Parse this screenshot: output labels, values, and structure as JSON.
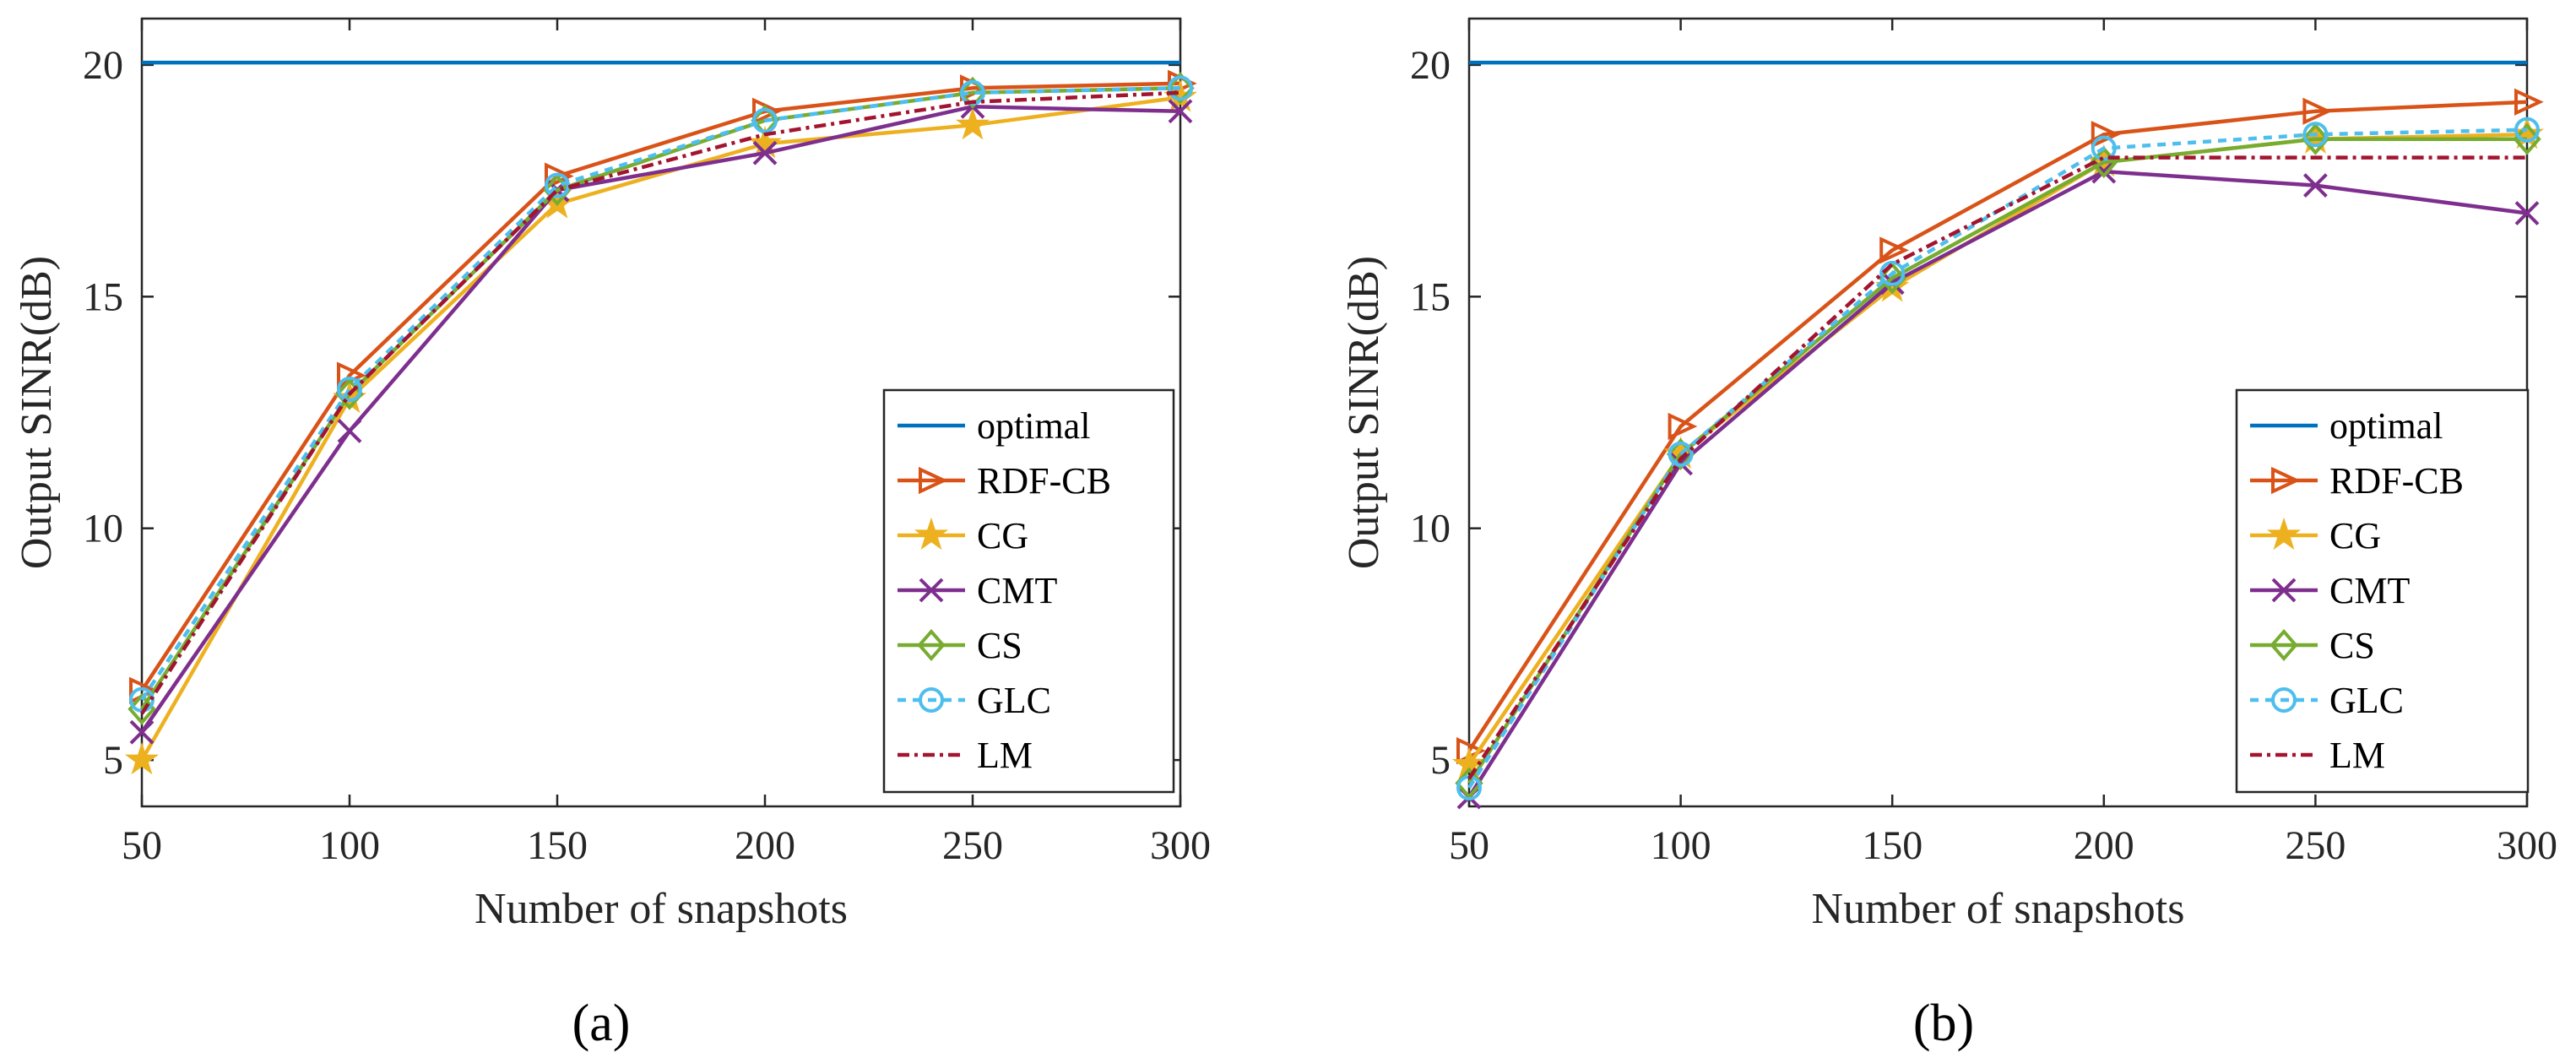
{
  "chart_data": [
    {
      "type": "line",
      "panel_label": "(a)",
      "xlabel": "Number of snapshots",
      "ylabel": "Output SINR(dB)",
      "x": [
        50,
        100,
        150,
        200,
        250,
        300
      ],
      "xticks": [
        "50",
        "100",
        "150",
        "200",
        "250",
        "300"
      ],
      "yticks": [
        "5",
        "10",
        "15",
        "20"
      ],
      "xlim": [
        50,
        300
      ],
      "ylim": [
        4,
        21
      ],
      "legend_position": "bottom-right",
      "series": [
        {
          "name": "optimal",
          "values": [
            20.05,
            20.05,
            20.05,
            20.05,
            20.05,
            20.05
          ],
          "color": "#0072BD",
          "dash": "",
          "marker": "none"
        },
        {
          "name": "RDF-CB",
          "values": [
            6.5,
            13.3,
            17.6,
            19.0,
            19.5,
            19.6
          ],
          "color": "#D95319",
          "dash": "",
          "marker": "triangle-right"
        },
        {
          "name": "CG",
          "values": [
            5.0,
            12.8,
            17.0,
            18.3,
            18.7,
            19.3
          ],
          "color": "#EDB120",
          "dash": "",
          "marker": "star"
        },
        {
          "name": "CMT",
          "values": [
            5.6,
            12.1,
            17.3,
            18.1,
            19.1,
            19.0
          ],
          "color": "#7E2F8E",
          "dash": "",
          "marker": "x"
        },
        {
          "name": "CS",
          "values": [
            6.1,
            12.9,
            17.3,
            18.8,
            19.4,
            19.5
          ],
          "color": "#77AC30",
          "dash": "",
          "marker": "diamond"
        },
        {
          "name": "GLC",
          "values": [
            6.3,
            13.0,
            17.4,
            18.8,
            19.4,
            19.5
          ],
          "color": "#4DBEEE",
          "dash": "10,8",
          "marker": "circle"
        },
        {
          "name": "LM",
          "values": [
            6.0,
            12.9,
            17.3,
            18.5,
            19.2,
            19.4
          ],
          "color": "#A2142F",
          "dash": "14,6,4,6",
          "marker": "none"
        }
      ]
    },
    {
      "type": "line",
      "panel_label": "(b)",
      "xlabel": "Number of snapshots",
      "ylabel": "Output SINR(dB)",
      "x": [
        50,
        100,
        150,
        200,
        250,
        300
      ],
      "xticks": [
        "50",
        "100",
        "150",
        "200",
        "250",
        "300"
      ],
      "yticks": [
        "5",
        "10",
        "15",
        "20"
      ],
      "xlim": [
        50,
        300
      ],
      "ylim": [
        4,
        21
      ],
      "legend_position": "bottom-right",
      "series": [
        {
          "name": "optimal",
          "values": [
            20.05,
            20.05,
            20.05,
            20.05,
            20.05,
            20.05
          ],
          "color": "#0072BD",
          "dash": "",
          "marker": "none"
        },
        {
          "name": "RDF-CB",
          "values": [
            5.2,
            12.2,
            16.0,
            18.5,
            19.0,
            19.2
          ],
          "color": "#D95319",
          "dash": "",
          "marker": "triangle-right"
        },
        {
          "name": "CG",
          "values": [
            4.9,
            11.6,
            15.2,
            17.9,
            18.4,
            18.5
          ],
          "color": "#EDB120",
          "dash": "",
          "marker": "star"
        },
        {
          "name": "CMT",
          "values": [
            4.2,
            11.4,
            15.3,
            17.7,
            17.4,
            16.8
          ],
          "color": "#7E2F8E",
          "dash": "",
          "marker": "x"
        },
        {
          "name": "CS",
          "values": [
            4.5,
            11.6,
            15.4,
            17.9,
            18.4,
            18.4
          ],
          "color": "#77AC30",
          "dash": "",
          "marker": "diamond"
        },
        {
          "name": "GLC",
          "values": [
            4.4,
            11.6,
            15.5,
            18.2,
            18.5,
            18.6
          ],
          "color": "#4DBEEE",
          "dash": "10,8",
          "marker": "circle"
        },
        {
          "name": "LM",
          "values": [
            4.6,
            11.5,
            15.7,
            18.0,
            18.0,
            18.0
          ],
          "color": "#A2142F",
          "dash": "14,6,4,6",
          "marker": "none"
        }
      ]
    }
  ]
}
